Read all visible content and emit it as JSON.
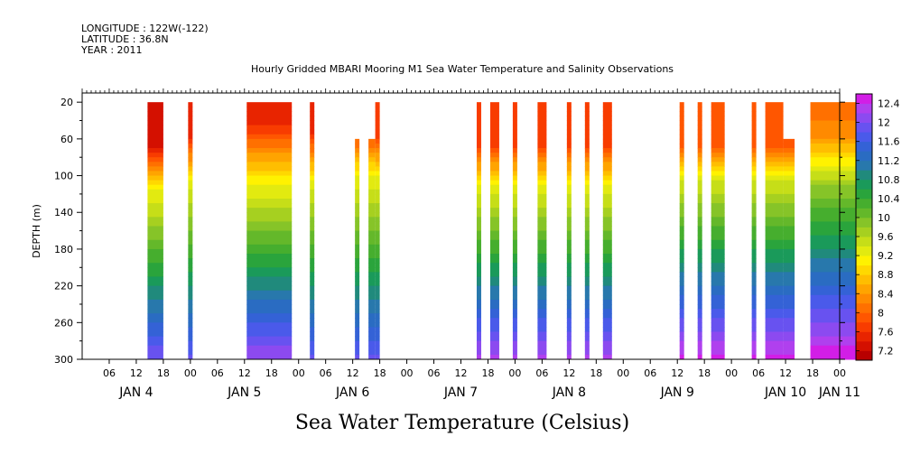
{
  "header": {
    "longitude": "LONGITUDE : 122W(-122)",
    "latitude": "LATITUDE : 36.8N",
    "year": "YEAR : 2011"
  },
  "chart_data": {
    "type": "heatmap",
    "title": "Hourly Gridded MBARI Mooring M1 Sea Water Temperature and Salinity Observations",
    "xlabel": "Sea Water Temperature (Celsius)",
    "ylabel": "DEPTH (m)",
    "ylim": [
      300,
      10
    ],
    "y_ticks": [
      20,
      60,
      100,
      140,
      180,
      220,
      260,
      300
    ],
    "x_time_range_hours": [
      0,
      168
    ],
    "x_hour_ticks": [
      {
        "t": 6,
        "label": "06"
      },
      {
        "t": 12,
        "label": "12"
      },
      {
        "t": 18,
        "label": "18"
      },
      {
        "t": 24,
        "label": "00"
      },
      {
        "t": 30,
        "label": "06"
      },
      {
        "t": 36,
        "label": "12"
      },
      {
        "t": 42,
        "label": "18"
      },
      {
        "t": 48,
        "label": "00"
      },
      {
        "t": 54,
        "label": "06"
      },
      {
        "t": 60,
        "label": "12"
      },
      {
        "t": 66,
        "label": "18"
      },
      {
        "t": 72,
        "label": "00"
      },
      {
        "t": 78,
        "label": "06"
      },
      {
        "t": 84,
        "label": "12"
      },
      {
        "t": 90,
        "label": "18"
      },
      {
        "t": 96,
        "label": "00"
      },
      {
        "t": 102,
        "label": "06"
      },
      {
        "t": 108,
        "label": "12"
      },
      {
        "t": 114,
        "label": "18"
      },
      {
        "t": 120,
        "label": "00"
      },
      {
        "t": 126,
        "label": "06"
      },
      {
        "t": 132,
        "label": "12"
      },
      {
        "t": 138,
        "label": "18"
      },
      {
        "t": 144,
        "label": "00"
      },
      {
        "t": 150,
        "label": "06"
      },
      {
        "t": 156,
        "label": "12"
      },
      {
        "t": 162,
        "label": "18"
      },
      {
        "t": 168,
        "label": "00"
      }
    ],
    "x_day_labels": [
      {
        "t": 12,
        "label": "JAN  4"
      },
      {
        "t": 36,
        "label": "JAN  5"
      },
      {
        "t": 60,
        "label": "JAN  6"
      },
      {
        "t": 84,
        "label": "JAN  7"
      },
      {
        "t": 108,
        "label": "JAN  8"
      },
      {
        "t": 132,
        "label": "JAN  9"
      },
      {
        "t": 156,
        "label": "JAN 10"
      },
      {
        "t": 168,
        "label": "JAN 11"
      }
    ],
    "colorbar_levels": [
      7.2,
      7.4,
      7.6,
      7.8,
      8,
      8.2,
      8.4,
      8.6,
      8.8,
      9,
      9.2,
      9.4,
      9.6,
      9.8,
      10,
      10.2,
      10.4,
      10.6,
      10.8,
      11,
      11.2,
      11.4,
      11.6,
      11.8,
      12,
      12.2,
      12.4,
      12.6
    ],
    "colorbar_labels": [
      "7.2",
      "7.6",
      "8",
      "8.4",
      "8.8",
      "9.2",
      "9.6",
      "10",
      "10.4",
      "10.8",
      "11.2",
      "11.6",
      "12",
      "12.4"
    ],
    "colors": [
      "#d21ee6",
      "#b040ee",
      "#8c4af0",
      "#6852f0",
      "#4a5aea",
      "#3462d6",
      "#2a6cc2",
      "#2878ac",
      "#208a7c",
      "#1a9a5a",
      "#2aa43c",
      "#46ae2e",
      "#64b82a",
      "#86c428",
      "#a6d020",
      "#c6de18",
      "#e2ea10",
      "#fff200",
      "#ffd800",
      "#ffbe00",
      "#ffa400",
      "#ff8a00",
      "#ff7000",
      "#ff5600",
      "#f83c00",
      "#e82400",
      "#d41000",
      "#b80000"
    ],
    "segments": [
      {
        "t0": 14.5,
        "t1": 18.0,
        "top": 20,
        "surface_temp": 12.5,
        "profile": "a"
      },
      {
        "t0": 23.5,
        "t1": 24.5,
        "top": 20,
        "surface_temp": 12.3,
        "profile": "b"
      },
      {
        "t0": 36.5,
        "t1": 46.5,
        "top": 20,
        "surface_temp": 12.5,
        "profile": "c"
      },
      {
        "t0": 50.5,
        "t1": 51.5,
        "top": 20,
        "surface_temp": 12.2,
        "profile": "b"
      },
      {
        "t0": 60.5,
        "t1": 61.5,
        "top": 60,
        "surface_temp": 12.0,
        "profile": "b"
      },
      {
        "t0": 63.5,
        "t1": 65.0,
        "top": 60,
        "surface_temp": 12.0,
        "profile": "b"
      },
      {
        "t0": 65.0,
        "t1": 66.0,
        "top": 20,
        "surface_temp": 12.1,
        "profile": "b"
      },
      {
        "t0": 87.5,
        "t1": 88.5,
        "top": 20,
        "surface_temp": 12.0,
        "profile": "d"
      },
      {
        "t0": 90.5,
        "t1": 92.5,
        "top": 20,
        "surface_temp": 12.0,
        "profile": "d"
      },
      {
        "t0": 95.5,
        "t1": 96.5,
        "top": 20,
        "surface_temp": 12.0,
        "profile": "d"
      },
      {
        "t0": 101.0,
        "t1": 103.0,
        "top": 20,
        "surface_temp": 12.0,
        "profile": "d"
      },
      {
        "t0": 107.5,
        "t1": 108.5,
        "top": 20,
        "surface_temp": 12.0,
        "profile": "d"
      },
      {
        "t0": 111.5,
        "t1": 112.5,
        "top": 20,
        "surface_temp": 12.0,
        "profile": "d"
      },
      {
        "t0": 115.5,
        "t1": 117.5,
        "top": 20,
        "surface_temp": 12.0,
        "profile": "d"
      },
      {
        "t0": 132.5,
        "t1": 133.5,
        "top": 20,
        "surface_temp": 11.9,
        "profile": "e"
      },
      {
        "t0": 136.5,
        "t1": 137.5,
        "top": 20,
        "surface_temp": 11.9,
        "profile": "e"
      },
      {
        "t0": 139.5,
        "t1": 142.5,
        "top": 20,
        "surface_temp": 11.9,
        "profile": "e"
      },
      {
        "t0": 148.5,
        "t1": 149.5,
        "top": 20,
        "surface_temp": 11.9,
        "profile": "e"
      },
      {
        "t0": 151.5,
        "t1": 155.5,
        "top": 20,
        "surface_temp": 11.9,
        "profile": "e"
      },
      {
        "t0": 155.5,
        "t1": 158.0,
        "top": 60,
        "surface_temp": 11.9,
        "profile": "e"
      },
      {
        "t0": 161.5,
        "t1": 171.5,
        "top": 20,
        "surface_temp": 11.9,
        "profile": "f"
      }
    ]
  }
}
